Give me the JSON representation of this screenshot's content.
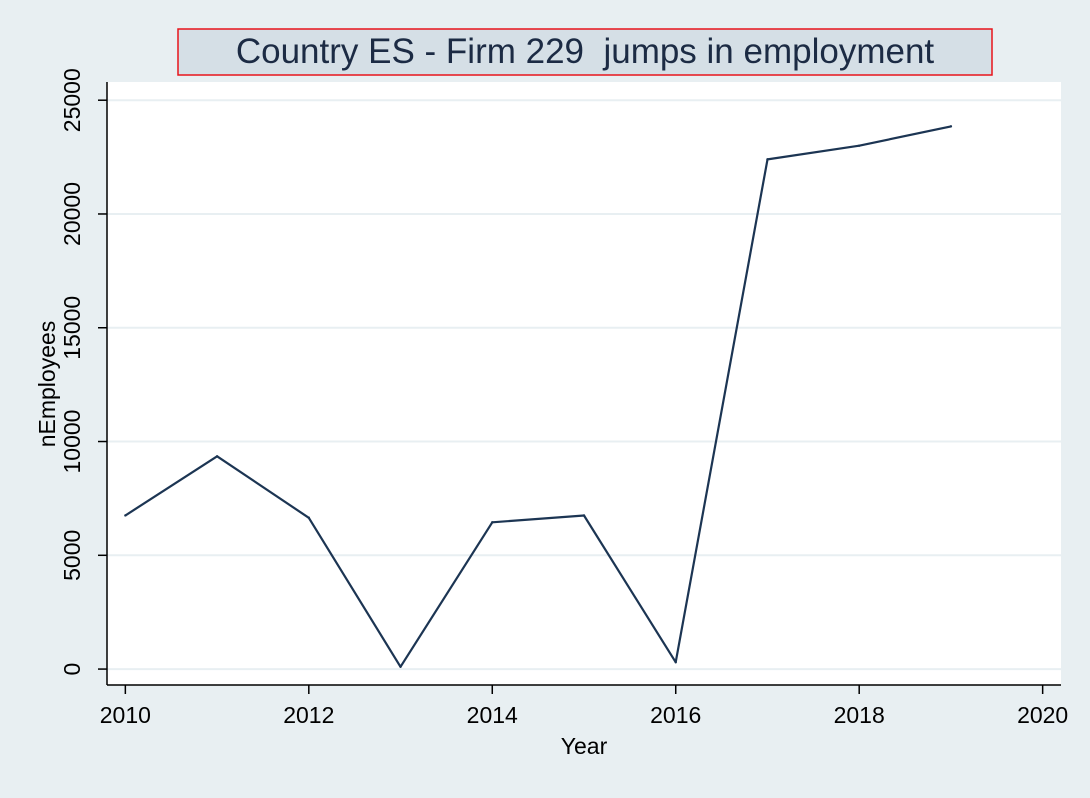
{
  "colors": {
    "figure_bg": "#e8eff2",
    "plot_bg": "#ffffff",
    "grid": "#e8eff2",
    "line": "#1c3553",
    "title_box_fill": "#d5dfe6",
    "title_box_border": "#e8141b",
    "text": "#000000",
    "title_text": "#1c2b44"
  },
  "chart_data": {
    "type": "line",
    "title": "Country ES - Firm 229  jumps in employment",
    "xlabel": "Year",
    "ylabel": "nEmployees",
    "xlim": [
      2009.8,
      2020.2
    ],
    "ylim": [
      -700,
      25800
    ],
    "x_ticks": [
      2010,
      2012,
      2014,
      2016,
      2018,
      2020
    ],
    "y_ticks": [
      0,
      5000,
      10000,
      15000,
      20000,
      25000
    ],
    "grid": true,
    "legend": "none",
    "series": [
      {
        "x": [
          2010,
          2011,
          2012,
          2013,
          2014,
          2015,
          2016,
          2017,
          2018,
          2019
        ],
        "values": [
          6750,
          9350,
          6650,
          100,
          6450,
          6750,
          300,
          22400,
          23000,
          23850
        ]
      }
    ]
  }
}
